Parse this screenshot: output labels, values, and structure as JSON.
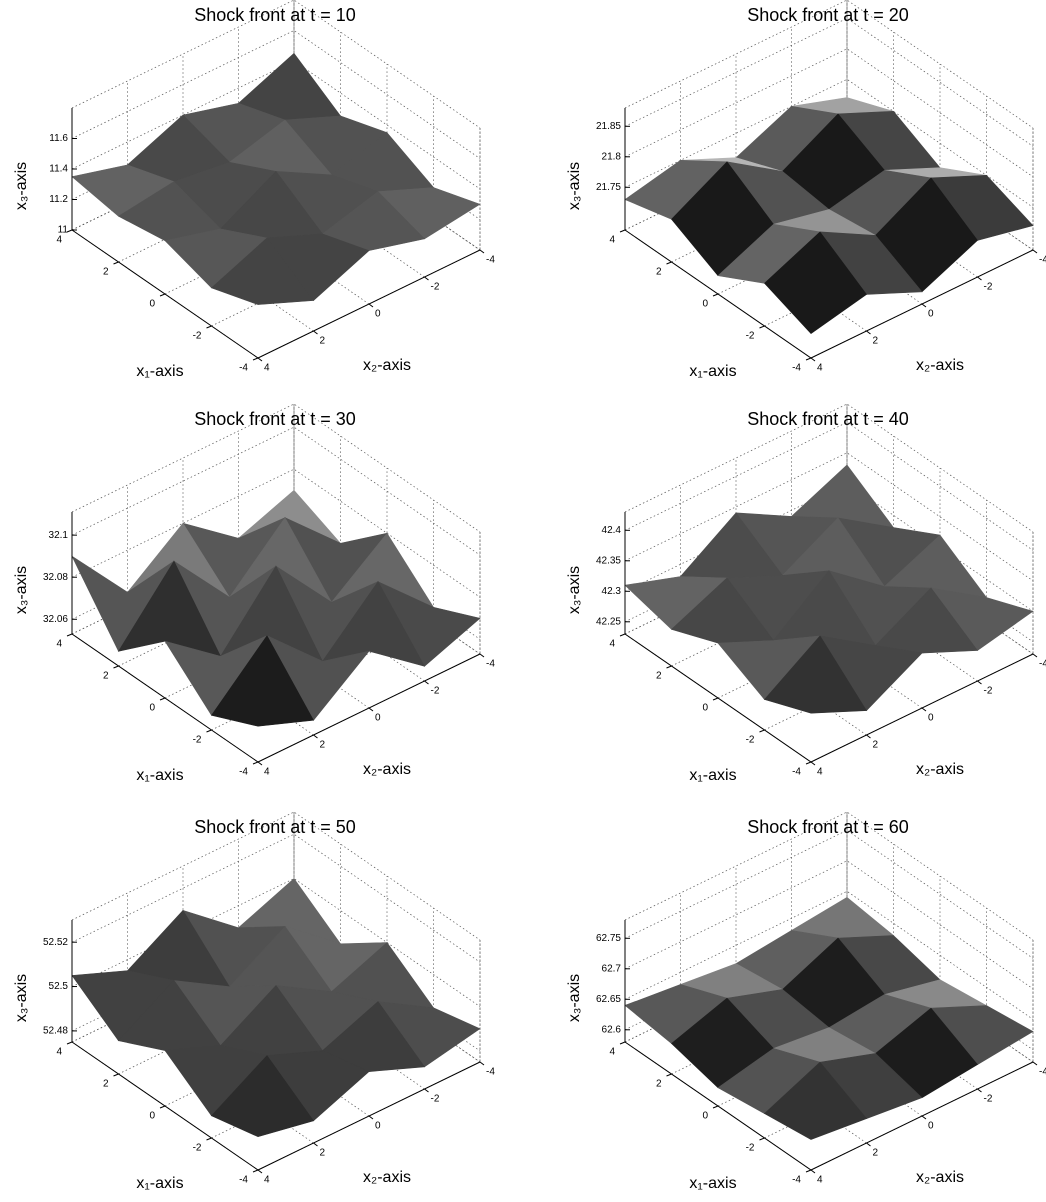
{
  "chart_data": [
    {
      "type": "surface",
      "title": "Shock front at t = 10",
      "xlabel": "x₁-axis",
      "ylabel": "x₂-axis",
      "zlabel": "x₃-axis",
      "x": [
        -4,
        -2,
        0,
        2,
        4
      ],
      "y": [
        -4,
        -2,
        0,
        2,
        4
      ],
      "z": [
        [
          11.3,
          11.25,
          11.35,
          11.2,
          11.35
        ],
        [
          11.2,
          11.35,
          11.25,
          11.4,
          11.25
        ],
        [
          11.35,
          11.25,
          11.45,
          11.25,
          11.35
        ],
        [
          11.25,
          11.4,
          11.3,
          11.35,
          11.3
        ],
        [
          11.45,
          11.3,
          11.4,
          11.25,
          11.35
        ]
      ],
      "xlim": [
        -4,
        4
      ],
      "ylim": [
        -4,
        4
      ],
      "zlim": [
        11,
        11.8
      ],
      "xticks": [
        -4,
        -2,
        0,
        2,
        4
      ],
      "yticks": [
        -4,
        -2,
        0,
        2,
        4
      ],
      "zticks": [
        11,
        11.2,
        11.4,
        11.6
      ],
      "grid": true
    },
    {
      "type": "surface",
      "title": "Shock front at t = 20",
      "xlabel": "x₁-axis",
      "ylabel": "x₂-axis",
      "zlabel": "x₃-axis",
      "x": [
        -4,
        -2,
        0,
        2,
        4
      ],
      "y": [
        -4,
        -2,
        0,
        2,
        4
      ],
      "z": [
        [
          21.72,
          21.74,
          21.7,
          21.74,
          21.72
        ],
        [
          21.75,
          21.79,
          21.74,
          21.79,
          21.75
        ],
        [
          21.71,
          21.75,
          21.73,
          21.75,
          21.71
        ],
        [
          21.75,
          21.79,
          21.74,
          21.8,
          21.75
        ],
        [
          21.72,
          21.75,
          21.71,
          21.75,
          21.73
        ]
      ],
      "xlim": [
        -4,
        4
      ],
      "ylim": [
        -4,
        4
      ],
      "zlim": [
        21.68,
        21.88
      ],
      "xticks": [
        -4,
        -2,
        0,
        2,
        4
      ],
      "yticks": [
        -4,
        -2,
        0,
        2,
        4
      ],
      "zticks": [
        21.75,
        21.8,
        21.85
      ],
      "grid": true
    },
    {
      "type": "surface",
      "title": "Shock front at t = 30",
      "xlabel": "x₁-axis",
      "ylabel": "x₂-axis",
      "zlabel": "x₃-axis",
      "x": [
        -4,
        -2,
        0,
        2,
        4
      ],
      "y": [
        -4,
        -2,
        0,
        2,
        4
      ],
      "z": [
        [
          32.07,
          32.06,
          32.08,
          32.06,
          32.07
        ],
        [
          32.06,
          32.085,
          32.06,
          32.085,
          32.06
        ],
        [
          32.08,
          32.06,
          32.09,
          32.06,
          32.08
        ],
        [
          32.06,
          32.085,
          32.06,
          32.09,
          32.06
        ],
        [
          32.07,
          32.06,
          32.08,
          32.06,
          32.09
        ]
      ],
      "xlim": [
        -4,
        4
      ],
      "ylim": [
        -4,
        4
      ],
      "zlim": [
        32.053,
        32.111
      ],
      "xticks": [
        -4,
        -2,
        0,
        2,
        4
      ],
      "yticks": [
        -4,
        -2,
        0,
        2,
        4
      ],
      "zticks": [
        32.06,
        32.08,
        32.1
      ],
      "grid": true
    },
    {
      "type": "surface",
      "title": "Shock front at t = 40",
      "xlabel": "x₁-axis",
      "ylabel": "x₂-axis",
      "zlabel": "x₃-axis",
      "x": [
        -4,
        -2,
        0,
        2,
        4
      ],
      "y": [
        -4,
        -2,
        0,
        2,
        4
      ],
      "z": [
        [
          42.3,
          42.28,
          42.32,
          42.27,
          42.31
        ],
        [
          42.27,
          42.33,
          42.28,
          42.34,
          42.28
        ],
        [
          42.32,
          42.28,
          42.35,
          42.28,
          42.32
        ],
        [
          42.28,
          42.34,
          42.29,
          42.33,
          42.29
        ],
        [
          42.33,
          42.29,
          42.34,
          42.28,
          42.31
        ]
      ],
      "xlim": [
        -4,
        4
      ],
      "ylim": [
        -4,
        4
      ],
      "zlim": [
        42.23,
        42.43
      ],
      "xticks": [
        -4,
        -2,
        0,
        2,
        4
      ],
      "yticks": [
        -4,
        -2,
        0,
        2,
        4
      ],
      "zticks": [
        42.25,
        42.3,
        42.35,
        42.4
      ],
      "grid": true
    },
    {
      "type": "surface",
      "title": "Shock front at t = 50",
      "xlabel": "x₁-axis",
      "ylabel": "x₂-axis",
      "zlabel": "x₃-axis",
      "x": [
        -4,
        -2,
        0,
        2,
        4
      ],
      "y": [
        -4,
        -2,
        0,
        2,
        4
      ],
      "z": [
        [
          52.49,
          52.485,
          52.495,
          52.485,
          52.49
        ],
        [
          52.485,
          52.5,
          52.49,
          52.5,
          52.485
        ],
        [
          52.5,
          52.49,
          52.505,
          52.49,
          52.5
        ],
        [
          52.485,
          52.505,
          52.49,
          52.505,
          52.49
        ],
        [
          52.5,
          52.49,
          52.51,
          52.495,
          52.505
        ]
      ],
      "xlim": [
        -4,
        4
      ],
      "ylim": [
        -4,
        4
      ],
      "zlim": [
        52.475,
        52.53
      ],
      "xticks": [
        -4,
        -2,
        0,
        2,
        4
      ],
      "yticks": [
        -4,
        -2,
        0,
        2,
        4
      ],
      "zticks": [
        52.48,
        52.5,
        52.52
      ],
      "grid": true
    },
    {
      "type": "surface",
      "title": "Shock front at t = 60",
      "xlabel": "x₁-axis",
      "ylabel": "x₂-axis",
      "zlabel": "x₃-axis",
      "x": [
        -4,
        -2,
        0,
        2,
        4
      ],
      "y": [
        -4,
        -2,
        0,
        2,
        4
      ],
      "z": [
        [
          62.63,
          62.62,
          62.61,
          62.62,
          62.63
        ],
        [
          62.62,
          62.66,
          62.63,
          62.66,
          62.62
        ],
        [
          62.61,
          62.63,
          62.62,
          62.63,
          62.61
        ],
        [
          62.63,
          62.67,
          62.63,
          62.66,
          62.63
        ],
        [
          62.64,
          62.63,
          62.62,
          62.63,
          62.64
        ]
      ],
      "xlim": [
        -4,
        4
      ],
      "ylim": [
        -4,
        4
      ],
      "zlim": [
        62.58,
        62.78
      ],
      "xticks": [
        -4,
        -2,
        0,
        2,
        4
      ],
      "yticks": [
        -4,
        -2,
        0,
        2,
        4
      ],
      "zticks": [
        62.6,
        62.65,
        62.7,
        62.75
      ],
      "grid": true
    }
  ]
}
